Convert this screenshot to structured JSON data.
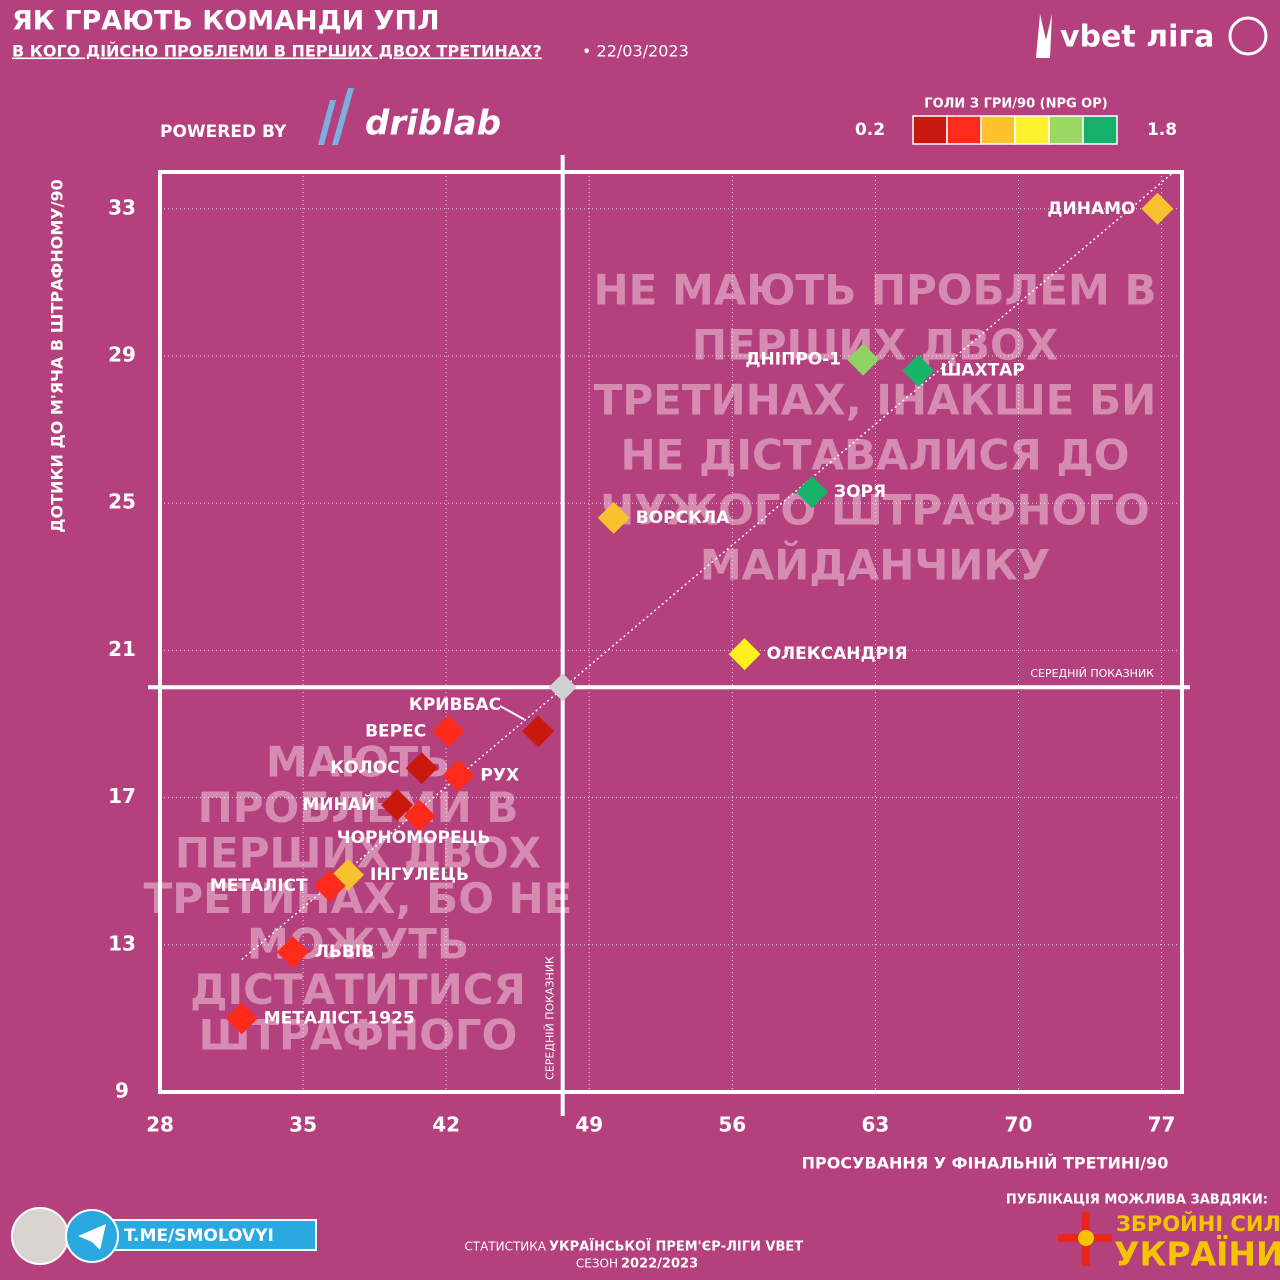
{
  "chart_data": {
    "type": "scatter",
    "title": "ЯК ГРАЮТЬ КОМАНДИ УПЛ",
    "subtitle": "В КОГО ДІЙСНО ПРОБЛЕМИ В ПЕРШИХ ДВОХ ТРЕТИНАХ?",
    "date": "• 22/03/2023",
    "powered_by": "POWERED BY",
    "brand": "driblab",
    "league_logo": "vbet ліга",
    "x_label": "ПРОСУВАННЯ У ФІНАЛЬНІЙ ТРЕТИНІ/90",
    "y_label": "ДОТИКИ ДО М'ЯЧА В ШТРАФНОМУ/90",
    "xlim": [
      28,
      78
    ],
    "ylim": [
      9,
      34
    ],
    "xticks": [
      28,
      35,
      42,
      49,
      56,
      63,
      70,
      77
    ],
    "yticks": [
      9,
      13,
      17,
      21,
      25,
      29,
      33
    ],
    "grid": true,
    "colorbar": {
      "title": "ГОЛИ З ГРИ/90 (NPG OP)",
      "min": 0.2,
      "max": 1.8,
      "colors": [
        "#c8190f",
        "#ff2a1a",
        "#ffc12e",
        "#fff12e",
        "#9ad862",
        "#16b06a"
      ]
    },
    "average": {
      "x": 47.7,
      "y": 20.0,
      "label_x": "СЕРЕДНІЙ ПОКАЗНИК",
      "label_y": "СЕРЕДНІЙ ПОКАЗНИК"
    },
    "trend_line": {
      "x": [
        32,
        77.6
      ],
      "y": [
        12.6,
        34
      ]
    },
    "points": [
      {
        "name": "ДИНАМО",
        "x": 76.8,
        "y": 33.0,
        "color": "#f7c22e"
      },
      {
        "name": "ДНІПРО-1",
        "x": 62.4,
        "y": 28.9,
        "color": "#8fd462"
      },
      {
        "name": "ШАХТАР",
        "x": 65.1,
        "y": 28.6,
        "color": "#16b36a"
      },
      {
        "name": "ЗОРЯ",
        "x": 59.9,
        "y": 25.3,
        "color": "#16b36a"
      },
      {
        "name": "ВОРСКЛА",
        "x": 50.2,
        "y": 24.6,
        "color": "#f7c22e"
      },
      {
        "name": "ОЛЕКСАНДРІЯ",
        "x": 56.6,
        "y": 20.9,
        "color": "#fdf01e"
      },
      {
        "name": "КРИВБАС",
        "x": 46.5,
        "y": 18.8,
        "color": "#c8190f"
      },
      {
        "name": "ВЕРЕС",
        "x": 42.1,
        "y": 18.8,
        "color": "#ff2a1a"
      },
      {
        "name": "КОЛОС",
        "x": 40.8,
        "y": 17.8,
        "color": "#c8190f"
      },
      {
        "name": "РУХ",
        "x": 42.6,
        "y": 17.6,
        "color": "#ff2a1a"
      },
      {
        "name": "МИНАЙ",
        "x": 39.6,
        "y": 16.8,
        "color": "#c8190f"
      },
      {
        "name": "ЧОРНОМОРЕЦЬ",
        "x": 40.7,
        "y": 16.5,
        "color": "#ff2a1a"
      },
      {
        "name": "ІНГУЛЕЦЬ",
        "x": 37.2,
        "y": 14.9,
        "color": "#f7c22e"
      },
      {
        "name": "МЕТАЛІСТ",
        "x": 36.3,
        "y": 14.6,
        "color": "#ff2a1a"
      },
      {
        "name": "ЛЬВІВ",
        "x": 34.5,
        "y": 12.8,
        "color": "#ff2a1a"
      },
      {
        "name": "МЕТАЛІСТ 1925",
        "x": 32.0,
        "y": 11.0,
        "color": "#ff2a1a"
      }
    ],
    "quadrant_top_right": [
      "НЕ МАЮТЬ ПРОБЛЕМ В",
      "ПЕРШИХ ДВОХ",
      "ТРЕТИНАХ, ІНАКШЕ БИ",
      "НЕ ДІСТАВАЛИСЯ ДО",
      "ЧУЖОГО ШТРАФНОГО",
      "МАЙДАНЧИКУ"
    ],
    "quadrant_bottom_left": [
      "МАЮТЬ",
      "ПРОБЛЕМИ В",
      "ПЕРШИХ ДВОХ",
      "ТРЕТИНАХ, БО НЕ",
      "МОЖУТЬ",
      "ДІСТАТИТИСЯ",
      "ШТРАФНОГО"
    ],
    "footer": {
      "telegram": "T.ME/SMOLOVYI",
      "stats_prefix": "СТАТИСТИКА",
      "stats_source": "УКРАЇНСЬКОЇ ПРЕМ'ЄР-ЛІГИ VBET",
      "season_prefix": "СЕЗОН",
      "season": "2022/2023",
      "thanks": "ПУБЛІКАЦІЯ МОЖЛИВА ЗАВДЯКИ:",
      "army_1": "ЗБРОЙНІ СИЛИ",
      "army_2": "УКРАЇНИ"
    }
  }
}
